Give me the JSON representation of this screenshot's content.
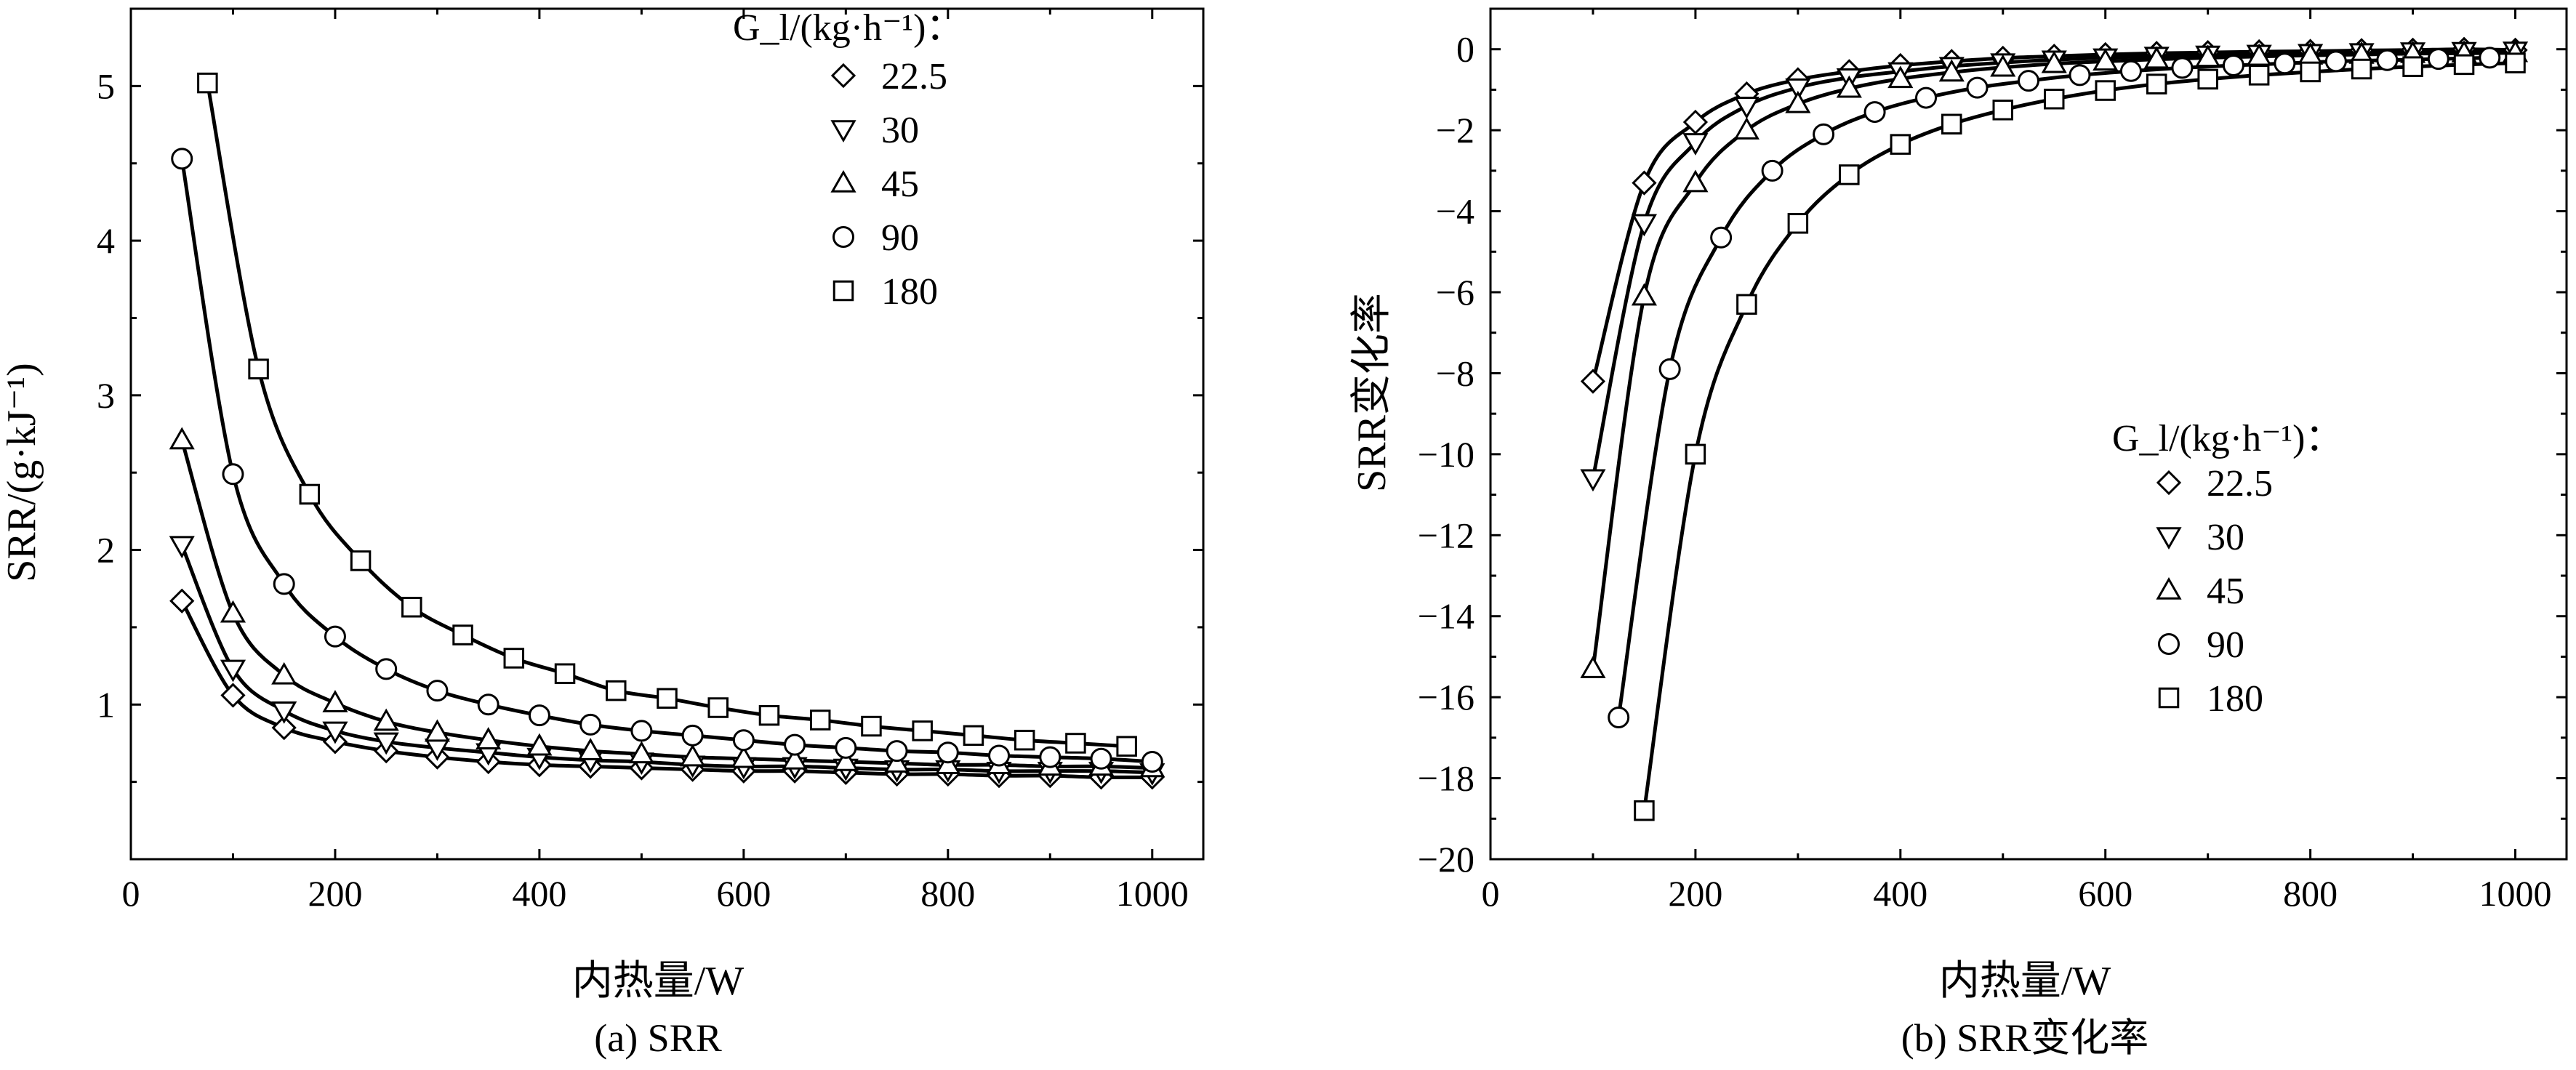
{
  "chart_data": [
    {
      "type": "line",
      "caption": "(a) SRR",
      "xlabel": "内热量/W",
      "ylabel": "SRR/(g·kJ⁻¹)",
      "xlim": [
        0,
        1050
      ],
      "ylim": [
        0,
        5.5
      ],
      "xticks": [
        0,
        200,
        400,
        600,
        800,
        1000
      ],
      "yticks": [
        1,
        2,
        3,
        4,
        5
      ],
      "legend": {
        "title": "G_l/(kg·h⁻¹)：",
        "position": "top-right"
      },
      "series": [
        {
          "name": "22.5",
          "marker": "diamond",
          "x": [
            50,
            100,
            150,
            200,
            250,
            300,
            350,
            400,
            450,
            500,
            550,
            600,
            650,
            700,
            750,
            800,
            850,
            900,
            950,
            1000
          ],
          "y": [
            1.67,
            1.06,
            0.85,
            0.76,
            0.7,
            0.66,
            0.63,
            0.61,
            0.6,
            0.59,
            0.58,
            0.57,
            0.57,
            0.56,
            0.55,
            0.55,
            0.54,
            0.54,
            0.53,
            0.53
          ]
        },
        {
          "name": "30",
          "marker": "triangle-down",
          "x": [
            50,
            100,
            150,
            200,
            250,
            300,
            350,
            400,
            450,
            500,
            550,
            600,
            650,
            700,
            750,
            800,
            850,
            900,
            950,
            1000
          ],
          "y": [
            2.03,
            1.23,
            0.96,
            0.83,
            0.76,
            0.72,
            0.69,
            0.66,
            0.64,
            0.63,
            0.61,
            0.6,
            0.6,
            0.59,
            0.58,
            0.58,
            0.57,
            0.57,
            0.57,
            0.56
          ]
        },
        {
          "name": "45",
          "marker": "triangle-up",
          "x": [
            50,
            100,
            150,
            200,
            250,
            300,
            350,
            400,
            450,
            500,
            550,
            600,
            650,
            700,
            750,
            800,
            850,
            900,
            950,
            1000
          ],
          "y": [
            2.71,
            1.59,
            1.19,
            1.01,
            0.89,
            0.82,
            0.77,
            0.73,
            0.7,
            0.68,
            0.66,
            0.65,
            0.64,
            0.63,
            0.62,
            0.61,
            0.61,
            0.6,
            0.6,
            0.59
          ]
        },
        {
          "name": "90",
          "marker": "circle",
          "x": [
            50,
            100,
            150,
            200,
            250,
            300,
            350,
            400,
            450,
            500,
            550,
            600,
            650,
            700,
            750,
            800,
            850,
            900,
            950,
            1000
          ],
          "y": [
            4.53,
            2.49,
            1.78,
            1.44,
            1.23,
            1.09,
            1.0,
            0.93,
            0.87,
            0.83,
            0.8,
            0.77,
            0.74,
            0.72,
            0.7,
            0.69,
            0.67,
            0.66,
            0.65,
            0.63
          ]
        },
        {
          "name": "180",
          "marker": "square",
          "x": [
            75,
            125,
            175,
            225,
            275,
            325,
            375,
            425,
            475,
            525,
            575,
            625,
            675,
            725,
            775,
            825,
            875,
            925,
            975
          ],
          "y": [
            5.02,
            3.17,
            2.36,
            1.93,
            1.63,
            1.45,
            1.3,
            1.2,
            1.09,
            1.04,
            0.98,
            0.93,
            0.9,
            0.86,
            0.83,
            0.8,
            0.77,
            0.75,
            0.73
          ]
        }
      ]
    },
    {
      "type": "line",
      "caption": "(b) SRR变化率",
      "xlabel": "内热量/W",
      "ylabel": "SRR变化率",
      "xlim": [
        0,
        1050
      ],
      "ylim": [
        -20,
        1
      ],
      "xticks": [
        0,
        200,
        400,
        600,
        800,
        1000
      ],
      "yticks": [
        0,
        -2,
        -4,
        -6,
        -8,
        -10,
        -12,
        -14,
        -16,
        -18,
        -20
      ],
      "ytick_labels": [
        "0",
        "−2",
        "−4",
        "−6",
        "−8",
        "−10",
        "−12",
        "−14",
        "−16",
        "−18",
        "−20"
      ],
      "legend": {
        "title": "G_l/(kg·h⁻¹)：",
        "position": "right"
      },
      "series": [
        {
          "name": "22.5",
          "marker": "diamond",
          "x": [
            100,
            150,
            200,
            250,
            300,
            350,
            400,
            450,
            500,
            550,
            600,
            650,
            700,
            750,
            800,
            850,
            900,
            950,
            1000
          ],
          "y": [
            -8.2,
            -3.3,
            -1.8,
            -1.1,
            -0.75,
            -0.55,
            -0.4,
            -0.3,
            -0.22,
            -0.17,
            -0.13,
            -0.1,
            -0.08,
            -0.06,
            -0.05,
            -0.03,
            -0.02,
            0.0,
            -0.02
          ]
        },
        {
          "name": "30",
          "marker": "triangle-down",
          "x": [
            100,
            150,
            200,
            250,
            300,
            350,
            400,
            450,
            500,
            550,
            600,
            650,
            700,
            750,
            800,
            850,
            900,
            950,
            1000
          ],
          "y": [
            -10.6,
            -4.3,
            -2.3,
            -1.4,
            -0.95,
            -0.7,
            -0.55,
            -0.42,
            -0.33,
            -0.26,
            -0.21,
            -0.17,
            -0.14,
            -0.12,
            -0.1,
            -0.08,
            -0.06,
            -0.05,
            -0.04
          ]
        },
        {
          "name": "45",
          "marker": "triangle-up",
          "x": [
            100,
            150,
            200,
            250,
            300,
            350,
            400,
            450,
            500,
            550,
            600,
            650,
            700,
            750,
            800,
            850,
            900,
            950,
            1000
          ],
          "y": [
            -15.3,
            -6.1,
            -3.3,
            -2.0,
            -1.35,
            -0.97,
            -0.73,
            -0.57,
            -0.45,
            -0.36,
            -0.3,
            -0.25,
            -0.21,
            -0.18,
            -0.15,
            -0.13,
            -0.11,
            -0.1,
            -0.09
          ]
        },
        {
          "name": "90",
          "marker": "circle",
          "x": [
            125,
            175,
            225,
            275,
            325,
            375,
            425,
            475,
            525,
            575,
            625,
            675,
            725,
            775,
            825,
            875,
            925,
            975
          ],
          "y": [
            -16.5,
            -7.9,
            -4.65,
            -3.0,
            -2.1,
            -1.55,
            -1.2,
            -0.95,
            -0.78,
            -0.64,
            -0.54,
            -0.46,
            -0.4,
            -0.35,
            -0.3,
            -0.27,
            -0.24,
            -0.21
          ]
        },
        {
          "name": "180",
          "marker": "square",
          "x": [
            150,
            200,
            250,
            300,
            350,
            400,
            450,
            500,
            550,
            600,
            650,
            700,
            750,
            800,
            850,
            900,
            950,
            1000
          ],
          "y": [
            -18.8,
            -10.0,
            -6.3,
            -4.3,
            -3.1,
            -2.35,
            -1.85,
            -1.5,
            -1.23,
            -1.02,
            -0.86,
            -0.74,
            -0.64,
            -0.56,
            -0.49,
            -0.43,
            -0.38,
            -0.34
          ]
        }
      ]
    }
  ]
}
